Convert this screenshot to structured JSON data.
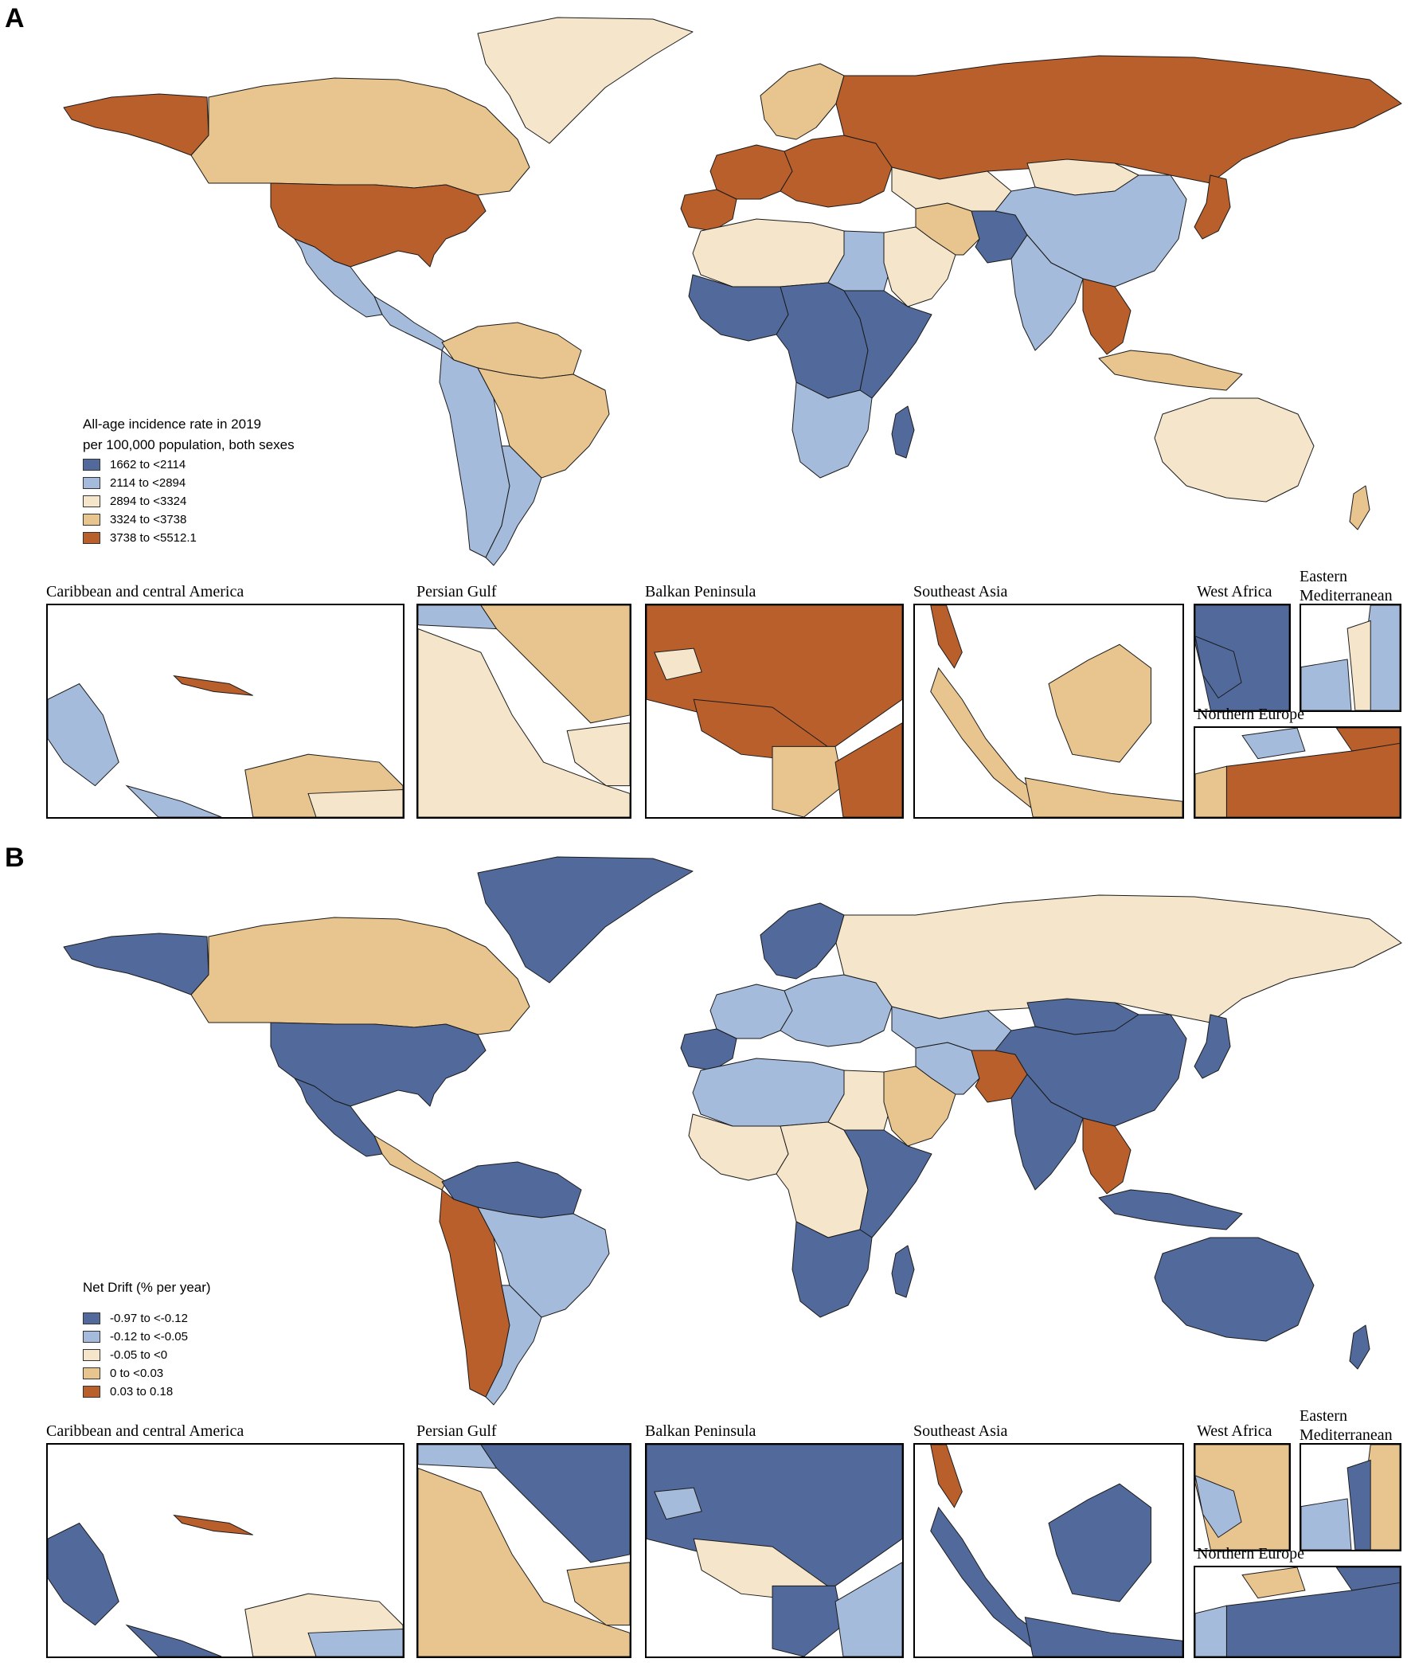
{
  "colors": {
    "dark_blue": "#516a9b",
    "light_blue": "#a5bbdb",
    "cream": "#f5e6cb",
    "tan": "#e8c48f",
    "rust": "#b95f2c",
    "border": "#1a1a1a",
    "ocean": "#ffffff"
  },
  "panels": [
    {
      "letter": "A",
      "legend": {
        "title_line1": "All-age incidence rate in 2019",
        "title_line2": "per 100,000 population, both sexes",
        "items": [
          {
            "label": "1662 to <2114",
            "color": "#516a9b"
          },
          {
            "label": "2114 to <2894",
            "color": "#a5bbdb"
          },
          {
            "label": "2894 to <3324",
            "color": "#f5e6cb"
          },
          {
            "label": "3324 to <3738",
            "color": "#e8c48f"
          },
          {
            "label": "3738 to <5512.1",
            "color": "#b95f2c"
          }
        ]
      },
      "regions": {
        "north_america_north": "tan",
        "alaska": "rust",
        "greenland": "cream",
        "usa": "rust",
        "mexico": "light_blue",
        "central_america": "light_blue",
        "north_south_america": "tan",
        "andes": "light_blue",
        "brazil": "tan",
        "argentina": "light_blue",
        "iberia": "rust",
        "western_europe": "rust",
        "scandinavia": "tan",
        "eastern_europe": "rust",
        "russia": "rust",
        "north_africa": "cream",
        "egypt": "light_blue",
        "west_africa": "dark_blue",
        "central_africa": "dark_blue",
        "east_africa": "dark_blue",
        "southern_africa": "light_blue",
        "madagascar": "dark_blue",
        "middle_east": "cream",
        "iran": "tan",
        "central_asia": "cream",
        "afghanistan_pakistan": "dark_blue",
        "china": "light_blue",
        "mongolia": "cream",
        "india": "light_blue",
        "southeast_asia": "rust",
        "indonesia": "tan",
        "japan": "rust",
        "australia": "cream",
        "new_zealand": "tan"
      },
      "insets": [
        {
          "label": "Caribbean and central America",
          "fills": [
            "light_blue",
            "tan",
            "cream",
            "rust",
            "light_blue"
          ]
        },
        {
          "label": "Persian Gulf",
          "fills": [
            "cream",
            "tan",
            "light_blue",
            "cream"
          ]
        },
        {
          "label": "Balkan Peninsula",
          "fills": [
            "rust",
            "cream",
            "rust",
            "tan",
            "rust"
          ]
        },
        {
          "label": "Southeast Asia",
          "fills": [
            "tan",
            "tan",
            "rust",
            "tan"
          ]
        },
        {
          "label": "West Africa",
          "fills": [
            "dark_blue",
            "dark_blue"
          ]
        },
        {
          "label": "Eastern Mediterranean",
          "fills": [
            "light_blue",
            "cream",
            "light_blue"
          ]
        },
        {
          "label": "Northern Europe",
          "fills": [
            "rust",
            "tan",
            "light_blue",
            "rust"
          ]
        }
      ]
    },
    {
      "letter": "B",
      "legend": {
        "title_line1": "Net Drift (% per year)",
        "title_line2": "",
        "items": [
          {
            "label": "-0.97 to <-0.12",
            "color": "#516a9b"
          },
          {
            "label": "-0.12 to <-0.05",
            "color": "#a5bbdb"
          },
          {
            "label": "-0.05 to <0",
            "color": "#f5e6cb"
          },
          {
            "label": "0 to <0.03",
            "color": "#e8c48f"
          },
          {
            "label": "0.03 to 0.18",
            "color": "#b95f2c"
          }
        ]
      },
      "regions": {
        "north_america_north": "tan",
        "alaska": "dark_blue",
        "greenland": "dark_blue",
        "usa": "dark_blue",
        "mexico": "dark_blue",
        "central_america": "tan",
        "north_south_america": "dark_blue",
        "andes": "rust",
        "brazil": "light_blue",
        "argentina": "light_blue",
        "iberia": "dark_blue",
        "western_europe": "light_blue",
        "scandinavia": "dark_blue",
        "eastern_europe": "light_blue",
        "russia": "cream",
        "north_africa": "light_blue",
        "egypt": "cream",
        "west_africa": "cream",
        "central_africa": "cream",
        "east_africa": "dark_blue",
        "southern_africa": "dark_blue",
        "madagascar": "dark_blue",
        "middle_east": "tan",
        "iran": "light_blue",
        "central_asia": "light_blue",
        "afghanistan_pakistan": "rust",
        "china": "dark_blue",
        "mongolia": "dark_blue",
        "india": "dark_blue",
        "southeast_asia": "rust",
        "indonesia": "dark_blue",
        "japan": "dark_blue",
        "australia": "dark_blue",
        "new_zealand": "dark_blue"
      },
      "insets": [
        {
          "label": "Caribbean and central America",
          "fills": [
            "dark_blue",
            "cream",
            "light_blue",
            "rust",
            "dark_blue"
          ]
        },
        {
          "label": "Persian Gulf",
          "fills": [
            "tan",
            "dark_blue",
            "light_blue",
            "tan"
          ]
        },
        {
          "label": "Balkan Peninsula",
          "fills": [
            "dark_blue",
            "light_blue",
            "cream",
            "dark_blue",
            "light_blue"
          ]
        },
        {
          "label": "Southeast Asia",
          "fills": [
            "dark_blue",
            "dark_blue",
            "rust",
            "dark_blue"
          ]
        },
        {
          "label": "West Africa",
          "fills": [
            "tan",
            "light_blue"
          ]
        },
        {
          "label": "Eastern Mediterranean",
          "fills": [
            "tan",
            "dark_blue",
            "light_blue"
          ]
        },
        {
          "label": "Northern Europe",
          "fills": [
            "dark_blue",
            "light_blue",
            "tan",
            "dark_blue"
          ]
        }
      ]
    }
  ]
}
